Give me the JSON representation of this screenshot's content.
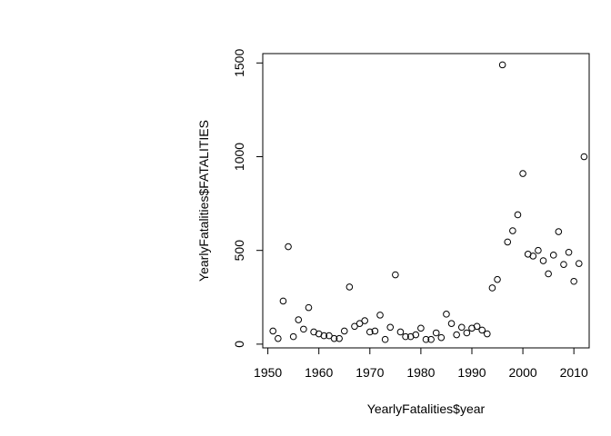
{
  "chart_data": {
    "type": "scatter",
    "title": "",
    "xlabel": "YearlyFatalities$year",
    "ylabel": "YearlyFatalities$FATALITIES",
    "xlim": [
      1949,
      2013
    ],
    "ylim": [
      -20,
      1550
    ],
    "x_ticks": [
      1950,
      1960,
      1970,
      1980,
      1990,
      2000,
      2010
    ],
    "y_ticks": [
      0,
      500,
      1000,
      1500
    ],
    "grid": false,
    "legend": "none",
    "marker": "open-circle",
    "x": [
      1951,
      1952,
      1953,
      1954,
      1955,
      1956,
      1957,
      1958,
      1959,
      1960,
      1961,
      1962,
      1963,
      1964,
      1965,
      1966,
      1967,
      1968,
      1969,
      1970,
      1971,
      1972,
      1973,
      1974,
      1975,
      1976,
      1977,
      1978,
      1979,
      1980,
      1981,
      1982,
      1983,
      1984,
      1985,
      1986,
      1987,
      1988,
      1989,
      1990,
      1991,
      1992,
      1993,
      1994,
      1995,
      1996,
      1997,
      1998,
      1999,
      2000,
      2001,
      2002,
      2003,
      2004,
      2005,
      2006,
      2007,
      2008,
      2009,
      2010,
      2011,
      2012
    ],
    "y": [
      70,
      30,
      230,
      520,
      40,
      130,
      80,
      195,
      65,
      55,
      45,
      45,
      30,
      30,
      70,
      305,
      95,
      110,
      125,
      65,
      70,
      155,
      25,
      90,
      370,
      65,
      40,
      40,
      50,
      85,
      25,
      25,
      60,
      35,
      160,
      110,
      50,
      90,
      60,
      85,
      95,
      75,
      55,
      300,
      345,
      1490,
      545,
      605,
      690,
      910,
      480,
      470,
      500,
      445,
      375,
      475,
      600,
      425,
      490,
      335,
      430,
      1000
    ]
  }
}
